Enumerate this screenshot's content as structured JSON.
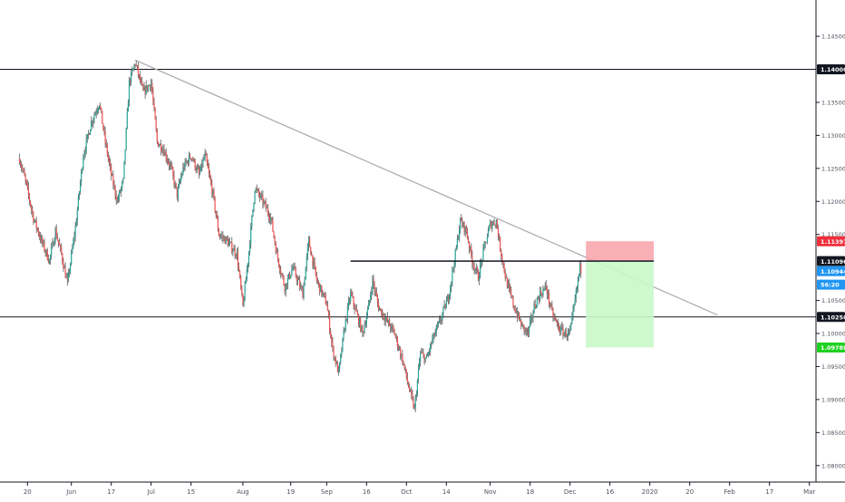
{
  "chart_data": {
    "type": "candlestick",
    "title": "",
    "xlabel": "",
    "ylabel": "",
    "ylim": [
      1.0775,
      1.1505
    ],
    "grid": false,
    "price_axis": {
      "ticks": [
        "1.14500",
        "1.13500",
        "1.13000",
        "1.12500",
        "1.12000",
        "1.11500",
        "1.10500",
        "1.10000",
        "1.09500",
        "1.09000",
        "1.08500",
        "1.08000"
      ]
    },
    "time_axis": {
      "ticks": [
        {
          "label": "20",
          "t": 0.2
        },
        {
          "label": "Jun",
          "t": 1.3
        },
        {
          "label": "17",
          "t": 2.3
        },
        {
          "label": "Jul",
          "t": 3.3
        },
        {
          "label": "15",
          "t": 4.3
        },
        {
          "label": "Aug",
          "t": 5.6
        },
        {
          "label": "19",
          "t": 6.8
        },
        {
          "label": "Sep",
          "t": 7.7
        },
        {
          "label": "16",
          "t": 8.7
        },
        {
          "label": "Oct",
          "t": 9.7
        },
        {
          "label": "14",
          "t": 10.7
        },
        {
          "label": "Nov",
          "t": 11.8
        },
        {
          "label": "18",
          "t": 12.8
        },
        {
          "label": "Dec",
          "t": 13.8
        },
        {
          "label": "16",
          "t": 14.8
        },
        {
          "label": "2020",
          "t": 15.8
        },
        {
          "label": "20",
          "t": 16.8
        },
        {
          "label": "Feb",
          "t": 17.8
        },
        {
          "label": "17",
          "t": 18.8
        },
        {
          "label": "Mar",
          "t": 19.8
        }
      ]
    },
    "series": [
      {
        "kind": "price-path",
        "t_end": 14.1,
        "path": [
          [
            0.0,
            1.1265
          ],
          [
            0.15,
            1.123
          ],
          [
            0.35,
            1.1175
          ],
          [
            0.55,
            1.114
          ],
          [
            0.75,
            1.111
          ],
          [
            0.9,
            1.1155
          ],
          [
            1.05,
            1.112
          ],
          [
            1.2,
            1.1075
          ],
          [
            1.4,
            1.116
          ],
          [
            1.6,
            1.127
          ],
          [
            1.8,
            1.132
          ],
          [
            2.0,
            1.135
          ],
          [
            2.15,
            1.129
          ],
          [
            2.3,
            1.124
          ],
          [
            2.45,
            1.12
          ],
          [
            2.6,
            1.123
          ],
          [
            2.75,
            1.138
          ],
          [
            2.9,
            1.141
          ],
          [
            3.1,
            1.1365
          ],
          [
            3.3,
            1.138
          ],
          [
            3.45,
            1.129
          ],
          [
            3.6,
            1.128
          ],
          [
            3.8,
            1.125
          ],
          [
            3.95,
            1.121
          ],
          [
            4.1,
            1.125
          ],
          [
            4.3,
            1.127
          ],
          [
            4.5,
            1.124
          ],
          [
            4.65,
            1.127
          ],
          [
            4.85,
            1.121
          ],
          [
            5.0,
            1.115
          ],
          [
            5.2,
            1.114
          ],
          [
            5.45,
            1.112
          ],
          [
            5.6,
            1.104
          ],
          [
            5.75,
            1.1125
          ],
          [
            5.9,
            1.122
          ],
          [
            6.1,
            1.12
          ],
          [
            6.3,
            1.1175
          ],
          [
            6.45,
            1.112
          ],
          [
            6.65,
            1.107
          ],
          [
            6.85,
            1.11
          ],
          [
            7.1,
            1.106
          ],
          [
            7.25,
            1.114
          ],
          [
            7.45,
            1.108
          ],
          [
            7.7,
            1.1045
          ],
          [
            7.85,
            1.0975
          ],
          [
            8.0,
            1.094
          ],
          [
            8.15,
            1.101
          ],
          [
            8.3,
            1.106
          ],
          [
            8.45,
            1.103
          ],
          [
            8.6,
            1.1
          ],
          [
            8.75,
            1.104
          ],
          [
            8.85,
            1.108
          ],
          [
            9.0,
            1.104
          ],
          [
            9.2,
            1.102
          ],
          [
            9.4,
            1.1
          ],
          [
            9.6,
            1.096
          ],
          [
            9.75,
            1.092
          ],
          [
            9.9,
            1.0885
          ],
          [
            10.05,
            1.097
          ],
          [
            10.2,
            1.096
          ],
          [
            10.35,
            1.099
          ],
          [
            10.55,
            1.102
          ],
          [
            10.75,
            1.1055
          ],
          [
            10.9,
            1.111
          ],
          [
            11.05,
            1.117
          ],
          [
            11.2,
            1.1155
          ],
          [
            11.35,
            1.111
          ],
          [
            11.5,
            1.1085
          ],
          [
            11.65,
            1.113
          ],
          [
            11.8,
            1.1165
          ],
          [
            11.95,
            1.117
          ],
          [
            12.05,
            1.113
          ],
          [
            12.2,
            1.108
          ],
          [
            12.4,
            1.104
          ],
          [
            12.6,
            1.101
          ],
          [
            12.75,
            1.1
          ],
          [
            12.9,
            1.104
          ],
          [
            13.05,
            1.106
          ],
          [
            13.2,
            1.107
          ],
          [
            13.35,
            1.103
          ],
          [
            13.5,
            1.101
          ],
          [
            13.65,
            1.1
          ],
          [
            13.8,
            1.1
          ],
          [
            13.95,
            1.106
          ],
          [
            14.05,
            1.11
          ],
          [
            14.1,
            1.1094
          ]
        ]
      }
    ],
    "trendline": {
      "from": {
        "t": 2.9,
        "price": 1.1414
      },
      "to": {
        "t": 17.5,
        "price": 1.1028
      }
    },
    "horizontal_lines": [
      {
        "name": "resistance-1.14000",
        "price": 1.14,
        "label": "1.14000",
        "label_color": "#131722"
      },
      {
        "name": "support-1.10250",
        "price": 1.1025,
        "label": "1.10250",
        "label_color": "#131722"
      }
    ],
    "segment_line": {
      "from_t": 8.3,
      "to_t": 15.9,
      "price": 1.11096
    },
    "position_tool": {
      "entry_price": 1.11096,
      "stop_price": 1.11397,
      "target_price": 1.09788,
      "from_t": 14.2,
      "to_t": 15.9,
      "stop_color": "#f7a1a8",
      "target_color": "#c9f7c9"
    },
    "price_labels": [
      {
        "name": "stop-price-label",
        "price": 1.11397,
        "label": "1.11397",
        "bg": "#ef2f3c",
        "fg": "#ffffff"
      },
      {
        "name": "entry-price-label",
        "price": 1.11096,
        "label": "1.11096",
        "bg": "#131722",
        "fg": "#ffffff"
      },
      {
        "name": "last-price-label",
        "price": 1.10944,
        "label": "1.10944",
        "bg": "#2196f3",
        "fg": "#ffffff"
      },
      {
        "name": "countdown-label",
        "price": 1.1074,
        "label": "56:20",
        "bg": "#2196f3",
        "fg": "#ffffff"
      },
      {
        "name": "target-price-label",
        "price": 1.09788,
        "label": "1.09788",
        "bg": "#1fd11f",
        "fg": "#ffffff"
      }
    ],
    "colors": {
      "up": "#26a69a",
      "down": "#ef5350",
      "trendline": "#a9a9a9",
      "axis": "#131722",
      "axis_text": "#50535e"
    }
  }
}
